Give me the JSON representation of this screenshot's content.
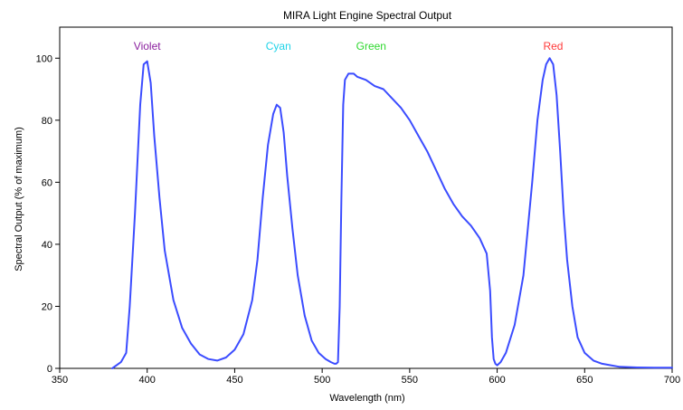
{
  "chart_data": {
    "type": "line",
    "title": "MIRA Light Engine Spectral Output",
    "xlabel": "Wavelength (nm)",
    "ylabel": "Spectral Output (% of maximum)",
    "xlim": [
      350,
      700
    ],
    "ylim": [
      0,
      110
    ],
    "xticks": [
      350,
      400,
      450,
      500,
      550,
      600,
      650,
      700
    ],
    "yticks": [
      0,
      20,
      40,
      60,
      80,
      100
    ],
    "grid": false,
    "legend": "none",
    "line_color": "#3b4cff",
    "band_labels": [
      {
        "text": "Violet",
        "x": 400,
        "color": "#8a1f9e"
      },
      {
        "text": "Cyan",
        "x": 475,
        "color": "#1fd3e8"
      },
      {
        "text": "Green",
        "x": 528,
        "color": "#2fd82f"
      },
      {
        "text": "Red",
        "x": 632,
        "color": "#ff3b3b"
      }
    ],
    "series": [
      {
        "x": [
          380,
          385,
          388,
          390,
          393,
          396,
          398,
          400,
          402,
          404,
          407,
          410,
          415,
          420,
          425,
          430,
          435,
          440,
          445,
          450,
          455,
          460,
          463,
          466,
          469,
          472,
          474,
          476,
          478,
          480,
          483,
          486,
          490,
          494,
          498,
          502,
          505,
          507,
          508,
          509,
          510,
          511,
          512,
          513,
          515,
          518,
          520,
          525,
          530,
          535,
          540,
          545,
          550,
          555,
          560,
          565,
          570,
          575,
          580,
          585,
          590,
          594,
          596,
          597,
          598,
          599,
          600,
          602,
          605,
          610,
          615,
          620,
          623,
          626,
          628,
          630,
          632,
          634,
          636,
          638,
          640,
          643,
          646,
          650,
          655,
          660,
          665,
          670,
          680,
          690,
          700
        ],
        "y": [
          0,
          2,
          5,
          20,
          50,
          85,
          98,
          99,
          92,
          75,
          55,
          38,
          22,
          13,
          8,
          4.5,
          3,
          2.5,
          3.5,
          6,
          11,
          22,
          35,
          55,
          72,
          82,
          85,
          84,
          76,
          62,
          45,
          30,
          17,
          9,
          5,
          3,
          2,
          1.5,
          1.5,
          2,
          20,
          55,
          85,
          93,
          95,
          95,
          94,
          93,
          91,
          90,
          87,
          84,
          80,
          75,
          70,
          64,
          58,
          53,
          49,
          46,
          42,
          37,
          25,
          10,
          3,
          1.5,
          1,
          2,
          5,
          14,
          30,
          60,
          80,
          93,
          98,
          100,
          98,
          88,
          70,
          50,
          35,
          20,
          10,
          5,
          2.5,
          1.5,
          1,
          0.5,
          0.3,
          0.2,
          0.2
        ]
      }
    ]
  }
}
